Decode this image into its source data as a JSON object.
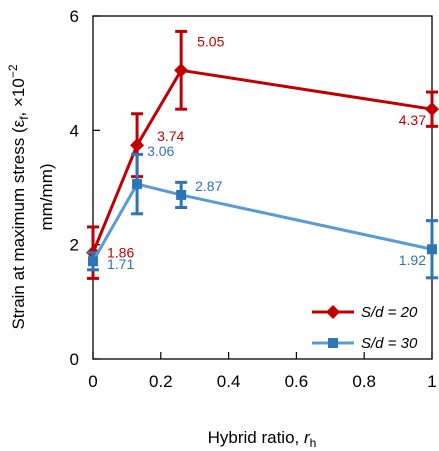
{
  "chart_data": {
    "type": "line",
    "xlabel": "Hybrid ratio, ",
    "xlabel_sub": "r",
    "xlabel_subscript": "h",
    "ylabel_line1": "Strain at maximum stress (ε",
    "ylabel_sub": "f",
    "ylabel_line1_tail": ", ×10",
    "ylabel_sup": "−2",
    "ylabel_line2": "mm/mm)",
    "xlim": [
      0,
      1
    ],
    "ylim": [
      0,
      6
    ],
    "x_ticks": [
      0,
      0.2,
      0.4,
      0.6,
      0.8,
      1
    ],
    "x_tick_labels": [
      "0",
      "0.2",
      "0.4",
      "0.6",
      "0.8",
      "1"
    ],
    "y_ticks": [
      0,
      2,
      4,
      6
    ],
    "y_tick_labels": [
      "0",
      "2",
      "4",
      "6"
    ],
    "grid": false,
    "legend_position": "bottom-right",
    "series": [
      {
        "name": "S/d = 20",
        "color": "#c00000",
        "marker": "diamond",
        "x": [
          0,
          0.13,
          0.26,
          1
        ],
        "y": [
          1.86,
          3.74,
          5.05,
          4.37
        ],
        "err": [
          0.45,
          0.55,
          0.68,
          0.3
        ],
        "labels": [
          "1.86",
          "3.74",
          "5.05",
          "4.37"
        ]
      },
      {
        "name": "S/d = 30",
        "color": "#5b9bd5",
        "marker_color": "#2e75b6",
        "err_color": "#2e75b6",
        "marker": "square",
        "x": [
          0,
          0.13,
          0.26,
          1
        ],
        "y": [
          1.71,
          3.06,
          2.87,
          1.92
        ],
        "err": [
          0.15,
          0.52,
          0.22,
          0.5
        ],
        "labels": [
          "1.71",
          "3.06",
          "2.87",
          "1.92"
        ]
      }
    ]
  }
}
